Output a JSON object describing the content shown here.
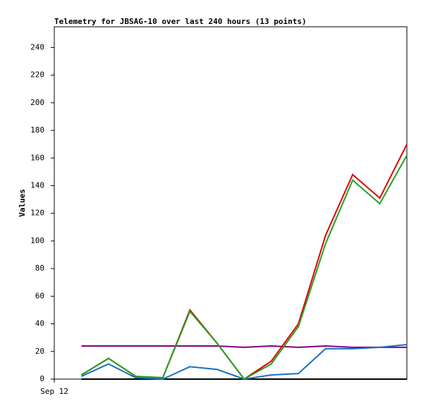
{
  "chart_data": {
    "type": "line",
    "title": "Telemetry for JBSAG-10 over last 240 hours (13 points)",
    "y_label": "Values",
    "x": [
      1,
      2,
      3,
      4,
      5,
      6,
      7,
      8,
      9,
      10,
      11,
      12,
      13
    ],
    "xlim": [
      0,
      13
    ],
    "xticks": [
      {
        "value": 0,
        "label": "Sep 12"
      }
    ],
    "ylim": [
      0,
      255
    ],
    "yticks": [
      0,
      20,
      40,
      60,
      80,
      100,
      120,
      140,
      160,
      180,
      200,
      220,
      240
    ],
    "grid": false,
    "series": [
      {
        "color": "#000000",
        "values": [
          0,
          0,
          0,
          0,
          0,
          0,
          0,
          0,
          0,
          0,
          0,
          0,
          0
        ]
      },
      {
        "color": "#800080",
        "values": [
          24,
          24,
          24,
          24,
          24,
          24,
          23,
          24,
          23,
          24,
          23,
          23,
          23
        ]
      },
      {
        "color": "#1a6fc0",
        "values": [
          2,
          11,
          1,
          0,
          9,
          7,
          0,
          3,
          4,
          22,
          22,
          23,
          25
        ]
      },
      {
        "color": "#e00000",
        "values": [
          3,
          15,
          2,
          1,
          50,
          26,
          0,
          13,
          40,
          104,
          148,
          131,
          170
        ]
      },
      {
        "color": "#22a022",
        "values": [
          3,
          15,
          2,
          1,
          49,
          26,
          0,
          11,
          38,
          98,
          144,
          127,
          162
        ]
      }
    ]
  }
}
